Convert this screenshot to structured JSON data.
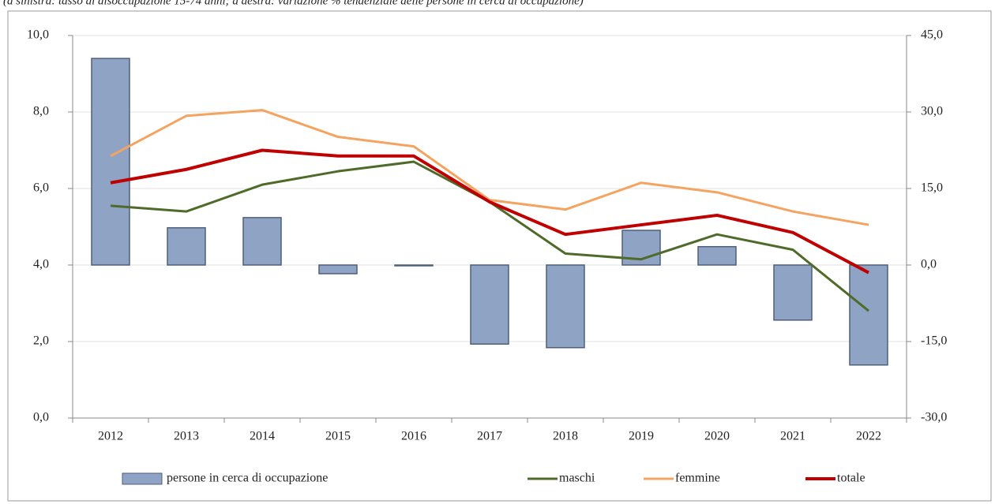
{
  "chart_data": {
    "type": "bar_line",
    "subtitle": "(a sinistra: tasso di disoccupazione 15-74 anni; a destra: variazione % tendenziale delle persone in cerca di occupazione)",
    "categories": [
      "2012",
      "2013",
      "2014",
      "2015",
      "2016",
      "2017",
      "2018",
      "2019",
      "2020",
      "2021",
      "2022"
    ],
    "series": [
      {
        "name": "persone in cerca di occupazione",
        "type": "bar",
        "axis": "y2",
        "color": "#8fa3c4",
        "values": [
          40.5,
          7.3,
          9.3,
          -1.7,
          0,
          -15.5,
          -16.2,
          6.8,
          3.6,
          -10.8,
          -19.6
        ]
      },
      {
        "name": "maschi",
        "type": "line",
        "color": "#4f6b2a",
        "values": [
          5.55,
          5.4,
          6.1,
          6.45,
          6.7,
          5.65,
          4.3,
          4.15,
          4.8,
          4.4,
          2.8
        ]
      },
      {
        "name": "femmine",
        "type": "line",
        "color": "#f4a460",
        "values": [
          6.85,
          7.9,
          8.05,
          7.35,
          7.1,
          5.7,
          5.45,
          6.15,
          5.9,
          5.4,
          5.05
        ]
      },
      {
        "name": "totale",
        "type": "line",
        "color": "#c00000",
        "values": [
          6.15,
          6.5,
          7.0,
          6.85,
          6.85,
          5.65,
          4.8,
          5.05,
          5.3,
          4.85,
          3.8
        ]
      }
    ],
    "ylim": [
      0,
      10
    ],
    "yticks": [
      {
        "value": 0,
        "label": "0,0"
      },
      {
        "value": 2,
        "label": "2,0"
      },
      {
        "value": 4,
        "label": "4,0"
      },
      {
        "value": 6,
        "label": "6,0"
      },
      {
        "value": 8,
        "label": "8,0"
      },
      {
        "value": 10,
        "label": "10,0"
      }
    ],
    "y2lim": [
      -30,
      45
    ],
    "y2ticks": [
      {
        "value": -30,
        "label": "-30,0"
      },
      {
        "value": -15,
        "label": "-15,0"
      },
      {
        "value": 0,
        "label": "0,0"
      },
      {
        "value": 15,
        "label": "15,0"
      },
      {
        "value": 30,
        "label": "30,0"
      },
      {
        "value": 45,
        "label": "45,0"
      }
    ],
    "grid": true,
    "legend": "bottom"
  }
}
